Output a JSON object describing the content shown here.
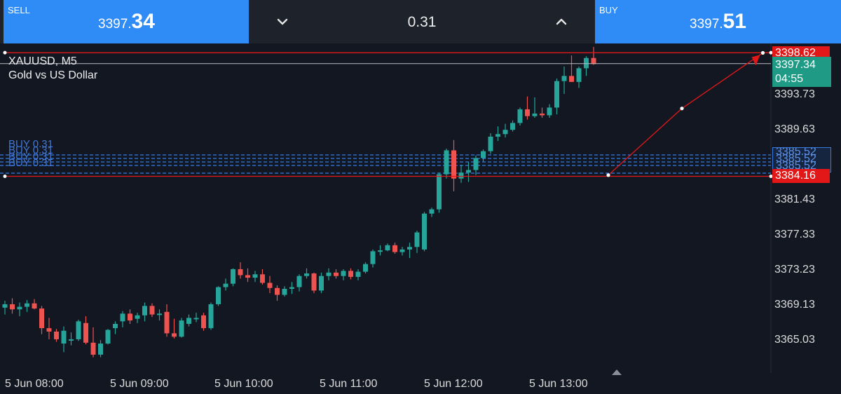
{
  "trade_panel": {
    "sell": {
      "label": "SELL",
      "price_main": "3397.",
      "price_pips": "34"
    },
    "buy": {
      "label": "BUY",
      "price_main": "3397.",
      "price_pips": "51"
    },
    "volume": "0.31",
    "volume_down_icon": "chevron-down-icon",
    "volume_up_icon": "chevron-up-icon"
  },
  "chart": {
    "symbol": "XAUUSD, M5",
    "description": "Gold vs US Dollar",
    "price_ticks": [
      "3393.73",
      "3389.63",
      "3381.43",
      "3377.33",
      "3373.23",
      "3369.13",
      "3365.03"
    ],
    "time_ticks": [
      "5 Jun 08:00",
      "5 Jun 09:00",
      "5 Jun 10:00",
      "5 Jun 11:00",
      "5 Jun 12:00",
      "5 Jun 13:00"
    ],
    "take_profit_tag": "3398.62",
    "stop_loss_tag": "3384.16",
    "current_price_tag": "3397.34",
    "countdown": "04:55",
    "entry_tag": "3385.52",
    "order_label": "BUY 0.31",
    "colors": {
      "background": "#131722",
      "bull": "#26a69a",
      "bear": "#ef5350",
      "level": "#e21818",
      "order": "#3a7be0",
      "accent": "#2f8bf5"
    }
  },
  "chart_data": {
    "type": "candlestick",
    "symbol": "XAUUSD",
    "timeframe": "M5",
    "ylim": [
      3363.0,
      3400.0
    ],
    "candles": [
      [
        3368.8,
        3369.6,
        3368.0,
        3369.2
      ],
      [
        3369.2,
        3369.9,
        3368.1,
        3368.6
      ],
      [
        3368.6,
        3369.4,
        3367.8,
        3368.9
      ],
      [
        3368.9,
        3369.7,
        3368.3,
        3369.3
      ],
      [
        3369.3,
        3369.8,
        3368.6,
        3368.7
      ],
      [
        3368.7,
        3369.0,
        3365.7,
        3366.4
      ],
      [
        3366.4,
        3367.6,
        3365.1,
        3366.0
      ],
      [
        3366.0,
        3366.3,
        3364.8,
        3365.1
      ],
      [
        3364.6,
        3366.6,
        3363.6,
        3366.1
      ],
      [
        3365.1,
        3365.9,
        3364.4,
        3365.1
      ],
      [
        3365.1,
        3367.4,
        3364.9,
        3367.2
      ],
      [
        3367.0,
        3367.8,
        3364.5,
        3364.7
      ],
      [
        3364.7,
        3366.5,
        3363.0,
        3363.3
      ],
      [
        3363.3,
        3365.0,
        3363.0,
        3364.6
      ],
      [
        3364.6,
        3366.3,
        3364.5,
        3366.2
      ],
      [
        3366.4,
        3367.2,
        3365.7,
        3366.9
      ],
      [
        3367.2,
        3368.4,
        3366.5,
        3368.1
      ],
      [
        3368.1,
        3368.6,
        3366.9,
        3367.3
      ],
      [
        3367.5,
        3368.2,
        3367.0,
        3367.9
      ],
      [
        3367.9,
        3369.4,
        3367.2,
        3369.0
      ],
      [
        3369.0,
        3369.3,
        3367.7,
        3368.0
      ],
      [
        3368.0,
        3368.6,
        3367.3,
        3368.1
      ],
      [
        3368.3,
        3369.2,
        3365.4,
        3365.8
      ],
      [
        3365.8,
        3367.5,
        3365.2,
        3365.4
      ],
      [
        3365.4,
        3367.6,
        3365.3,
        3367.3
      ],
      [
        3366.9,
        3368.0,
        3366.6,
        3367.6
      ],
      [
        3367.6,
        3368.2,
        3367.1,
        3367.6
      ],
      [
        3367.9,
        3368.2,
        3366.1,
        3366.4
      ],
      [
        3366.4,
        3369.4,
        3366.2,
        3369.2
      ],
      [
        3369.2,
        3371.3,
        3369.0,
        3371.2
      ],
      [
        3371.2,
        3372.2,
        3370.8,
        3371.6
      ],
      [
        3371.6,
        3373.4,
        3371.3,
        3373.3
      ],
      [
        3373.3,
        3374.1,
        3372.2,
        3372.6
      ],
      [
        3372.6,
        3373.4,
        3371.8,
        3372.3
      ],
      [
        3372.3,
        3373.1,
        3371.8,
        3372.7
      ],
      [
        3372.7,
        3373.3,
        3371.5,
        3371.7
      ],
      [
        3371.7,
        3372.5,
        3370.5,
        3371.1
      ],
      [
        3371.1,
        3371.4,
        3369.6,
        3370.3
      ],
      [
        3370.3,
        3371.3,
        3370.1,
        3371.0
      ],
      [
        3371.0,
        3371.8,
        3370.4,
        3371.2
      ],
      [
        3371.2,
        3372.7,
        3370.7,
        3372.5
      ],
      [
        3372.5,
        3373.4,
        3372.2,
        3372.8
      ],
      [
        3372.8,
        3372.9,
        3370.5,
        3370.8
      ],
      [
        3370.8,
        3372.9,
        3370.5,
        3372.5
      ],
      [
        3372.5,
        3373.4,
        3372.0,
        3372.9
      ],
      [
        3372.9,
        3373.3,
        3372.2,
        3372.5
      ],
      [
        3372.5,
        3373.3,
        3372.0,
        3373.1
      ],
      [
        3373.1,
        3373.4,
        3372.1,
        3372.4
      ],
      [
        3372.4,
        3373.3,
        3372.0,
        3373.0
      ],
      [
        3373.0,
        3374.1,
        3372.8,
        3373.9
      ],
      [
        3373.9,
        3375.6,
        3373.5,
        3375.4
      ],
      [
        3375.4,
        3376.1,
        3374.9,
        3375.5
      ],
      [
        3375.5,
        3376.3,
        3375.4,
        3376.1
      ],
      [
        3376.1,
        3376.4,
        3375.1,
        3375.3
      ],
      [
        3375.3,
        3375.9,
        3374.9,
        3375.6
      ],
      [
        3375.6,
        3376.4,
        3374.6,
        3375.9
      ],
      [
        3375.9,
        3377.8,
        3375.2,
        3377.6
      ],
      [
        3375.6,
        3380.0,
        3375.4,
        3379.8
      ],
      [
        3379.8,
        3380.5,
        3379.4,
        3380.3
      ],
      [
        3380.3,
        3384.6,
        3379.9,
        3384.4
      ],
      [
        3384.4,
        3387.4,
        3383.9,
        3387.2
      ],
      [
        3387.2,
        3388.4,
        3382.4,
        3383.9
      ],
      [
        3383.9,
        3385.5,
        3383.4,
        3384.6
      ],
      [
        3384.6,
        3385.8,
        3383.5,
        3384.9
      ],
      [
        3384.9,
        3386.6,
        3384.3,
        3386.3
      ],
      [
        3386.3,
        3387.3,
        3385.9,
        3387.1
      ],
      [
        3387.1,
        3389.2,
        3386.8,
        3388.8
      ],
      [
        3388.8,
        3390.0,
        3388.3,
        3389.1
      ],
      [
        3389.1,
        3390.3,
        3388.7,
        3389.6
      ],
      [
        3389.6,
        3390.7,
        3389.4,
        3390.4
      ],
      [
        3390.4,
        3392.2,
        3390.1,
        3392.0
      ],
      [
        3392.0,
        3393.5,
        3390.8,
        3391.2
      ],
      [
        3391.2,
        3393.4,
        3391.0,
        3391.5
      ],
      [
        3391.5,
        3392.2,
        3391.0,
        3391.3
      ],
      [
        3391.3,
        3392.6,
        3391.0,
        3392.2
      ],
      [
        3392.2,
        3395.6,
        3391.4,
        3395.3
      ],
      [
        3395.3,
        3397.0,
        3393.8,
        3395.9
      ],
      [
        3395.9,
        3398.3,
        3395.2,
        3395.2
      ],
      [
        3395.2,
        3397.0,
        3394.5,
        3396.8
      ],
      [
        3396.8,
        3398.2,
        3395.9,
        3398.0
      ],
      [
        3398.0,
        3399.3,
        3397.2,
        3397.3
      ]
    ],
    "levels": [
      {
        "name": "take profit",
        "price": 3398.62
      },
      {
        "name": "bid",
        "price": 3397.34
      },
      {
        "name": "stop loss",
        "price": 3384.16
      },
      {
        "name": "buy 0.31 entry",
        "price": 3385.52
      }
    ],
    "trend_line": {
      "from": [
        82,
        3384.3
      ],
      "via": [
        92,
        3392.1
      ],
      "to": [
        103,
        3398.6
      ]
    }
  }
}
